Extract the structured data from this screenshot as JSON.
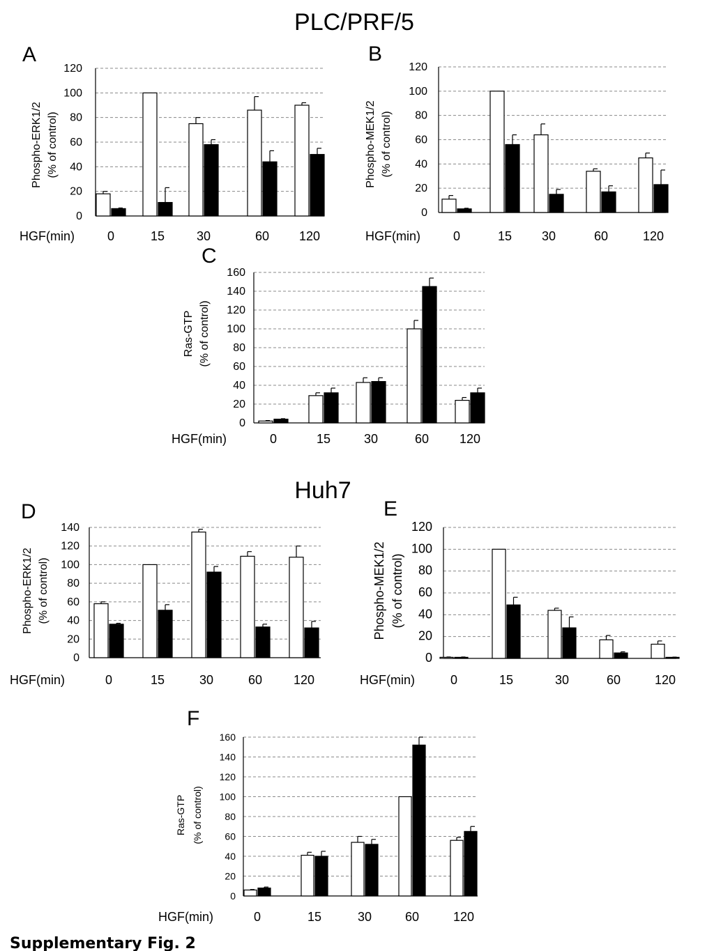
{
  "headings": {
    "top": "PLC/PRF/5",
    "bottom": "Huh7"
  },
  "caption": "Supplementary Fig. 2",
  "colors": {
    "open_bar": "#ffffff",
    "filled_bar": "#000000",
    "grid": "#888888",
    "axis": "#000000"
  },
  "chart_data": [
    {
      "panel": "A",
      "type": "bar",
      "xlabel": "HGF(min)",
      "ylabel_lines": [
        "Phospho-ERK1/2",
        "(% of control)"
      ],
      "categories": [
        "0",
        "15",
        "30",
        "60",
        "120"
      ],
      "ylim": [
        0,
        120
      ],
      "ytick_step": 20,
      "yticks": [
        "0",
        "20",
        "40",
        "60",
        "80",
        "100",
        "120"
      ],
      "grid": true,
      "series": [
        {
          "values": [
            18,
            100,
            75,
            86,
            90
          ],
          "errors": [
            2,
            0,
            5,
            11,
            2
          ]
        },
        {
          "values": [
            6,
            11,
            58,
            44,
            50
          ],
          "errors": [
            0.5,
            12,
            4,
            9,
            5
          ]
        }
      ]
    },
    {
      "panel": "B",
      "type": "bar",
      "xlabel": "HGF(min)",
      "ylabel_lines": [
        "Phospho-MEK1/2",
        "(% of control)"
      ],
      "categories": [
        "0",
        "15",
        "30",
        "60",
        "120"
      ],
      "ylim": [
        0,
        120
      ],
      "ytick_step": 20,
      "yticks": [
        "0",
        "20",
        "40",
        "60",
        "80",
        "100",
        "120"
      ],
      "grid": true,
      "series": [
        {
          "values": [
            11,
            100,
            64,
            34,
            45
          ],
          "errors": [
            3,
            0,
            9,
            2,
            4
          ]
        },
        {
          "values": [
            3,
            56,
            15,
            17,
            23
          ],
          "errors": [
            0.5,
            8,
            4,
            5,
            12
          ]
        }
      ]
    },
    {
      "panel": "C",
      "type": "bar",
      "xlabel": "HGF(min)",
      "ylabel_lines": [
        "Ras-GTP",
        "(% of control)"
      ],
      "categories": [
        "0",
        "15",
        "30",
        "60",
        "120"
      ],
      "ylim": [
        0,
        160
      ],
      "ytick_step": 20,
      "yticks": [
        "0",
        "20",
        "40",
        "60",
        "80",
        "100",
        "120",
        "140",
        "160"
      ],
      "grid": true,
      "series": [
        {
          "values": [
            2,
            29,
            43,
            100,
            24
          ],
          "errors": [
            0.5,
            3,
            5,
            9,
            3
          ]
        },
        {
          "values": [
            4,
            32,
            44,
            145,
            32
          ],
          "errors": [
            0.5,
            5,
            4,
            9,
            5
          ]
        }
      ]
    },
    {
      "panel": "D",
      "type": "bar",
      "xlabel": "HGF(min)",
      "ylabel_lines": [
        "Phospho-ERK1/2",
        "(% of control)"
      ],
      "categories": [
        "0",
        "15",
        "30",
        "60",
        "120"
      ],
      "ylim": [
        0,
        140
      ],
      "ytick_step": 20,
      "yticks": [
        "0",
        "20",
        "40",
        "60",
        "80",
        "100",
        "120",
        "140"
      ],
      "grid": true,
      "series": [
        {
          "values": [
            58,
            100,
            135,
            109,
            108
          ],
          "errors": [
            2,
            0,
            3,
            5,
            12
          ]
        },
        {
          "values": [
            36,
            51,
            92,
            33,
            32
          ],
          "errors": [
            1,
            6,
            6,
            3,
            7
          ]
        }
      ]
    },
    {
      "panel": "E",
      "type": "bar",
      "xlabel": "HGF(min)",
      "ylabel_lines": [
        "Phospho-MEK1/2",
        "(% of control)"
      ],
      "categories": [
        "0",
        "15",
        "30",
        "60",
        "120"
      ],
      "ylim": [
        0,
        120
      ],
      "ytick_step": 20,
      "yticks": [
        "0",
        "20",
        "40",
        "60",
        "80",
        "100",
        "120"
      ],
      "grid": true,
      "series": [
        {
          "values": [
            1,
            100,
            44,
            17,
            13
          ],
          "errors": [
            0.3,
            0,
            2,
            4,
            3
          ]
        },
        {
          "values": [
            1,
            49,
            28,
            5,
            1
          ],
          "errors": [
            0.3,
            7,
            10,
            1,
            0.2
          ]
        }
      ]
    },
    {
      "panel": "F",
      "type": "bar",
      "xlabel": "HGF(min)",
      "ylabel_lines": [
        "Ras-GTP",
        "(% of control)"
      ],
      "categories": [
        "0",
        "15",
        "30",
        "60",
        "120"
      ],
      "ylim": [
        0,
        160
      ],
      "ytick_step": 20,
      "yticks": [
        "0",
        "20",
        "40",
        "60",
        "80",
        "100",
        "120",
        "140",
        "160"
      ],
      "grid": true,
      "series": [
        {
          "values": [
            6,
            41,
            54,
            100,
            56
          ],
          "errors": [
            0.5,
            3,
            6,
            0,
            3
          ]
        },
        {
          "values": [
            8,
            40,
            52,
            152,
            65
          ],
          "errors": [
            1,
            5,
            5,
            8,
            5
          ]
        }
      ]
    }
  ]
}
